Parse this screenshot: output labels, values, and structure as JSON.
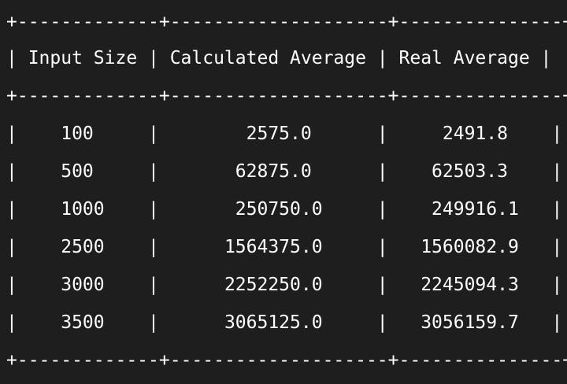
{
  "table": {
    "border": "+-------------+--------------------+---------------+",
    "header": "| Input Size | Calculated Average | Real Average |",
    "rows": [
      "|    100     |        2575.0      |     2491.8    |",
      "|    500     |       62875.0      |    62503.3    |",
      "|    1000    |       250750.0     |    249916.1   |",
      "|    2500    |      1564375.0     |   1560082.9   |",
      "|    3000    |      2252250.0     |   2245094.3   |",
      "|    3500    |      3065125.0     |   3056159.7   |"
    ]
  },
  "colors": {
    "background": "#1e1e1e",
    "text": "#ffffff"
  }
}
